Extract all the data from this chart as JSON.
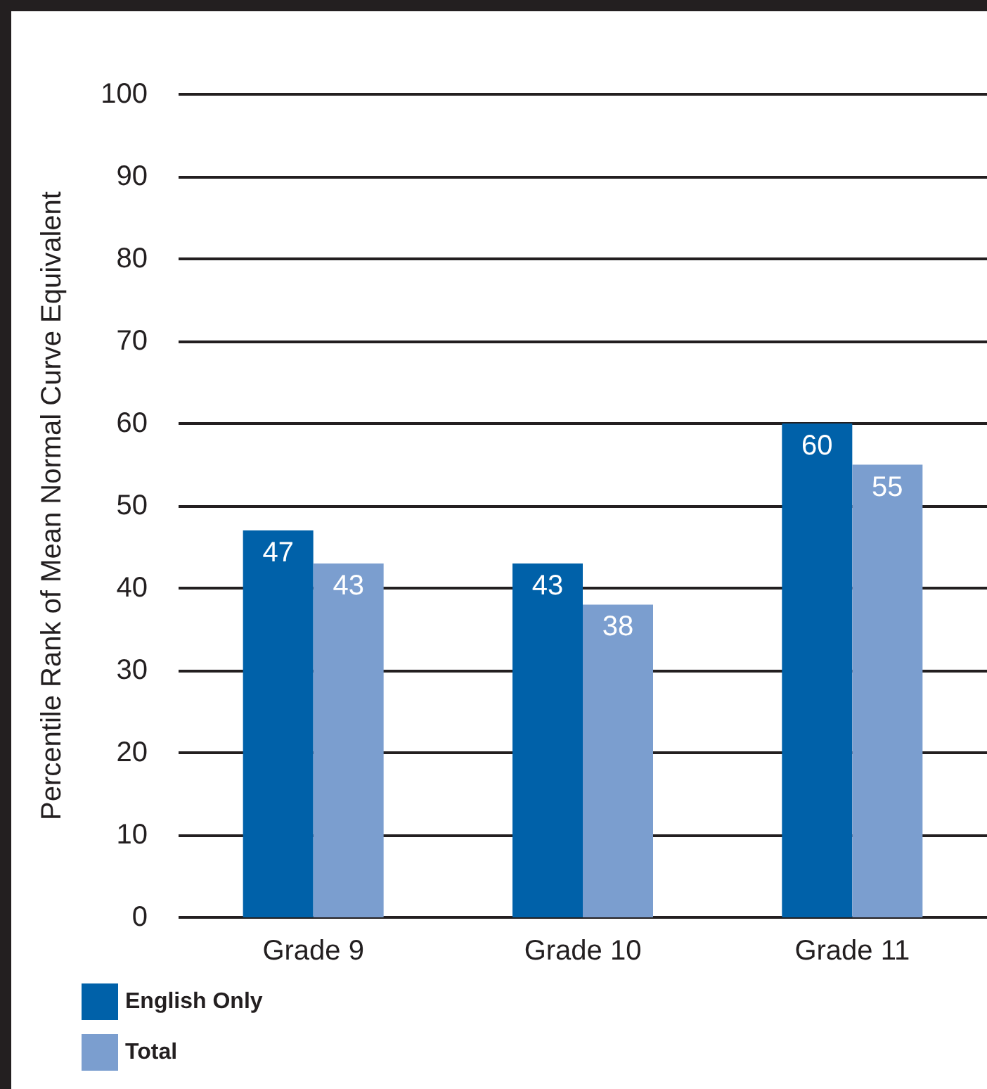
{
  "chart_data": {
    "type": "bar",
    "ylabel": "Percentile Rank of Mean Normal Curve Equivalent",
    "categories": [
      "Grade 9",
      "Grade 10",
      "Grade 11"
    ],
    "series": [
      {
        "name": "English Only",
        "color": "#0061a9",
        "values": [
          47,
          43,
          60
        ]
      },
      {
        "name": "Total",
        "color": "#7b9ecf",
        "values": [
          43,
          38,
          55
        ]
      }
    ],
    "ylim": [
      0,
      100
    ],
    "yticks": [
      0,
      10,
      20,
      30,
      40,
      50,
      60,
      70,
      80,
      90,
      100
    ],
    "grid": "y",
    "legend": "bottom left",
    "data_labels": true
  }
}
